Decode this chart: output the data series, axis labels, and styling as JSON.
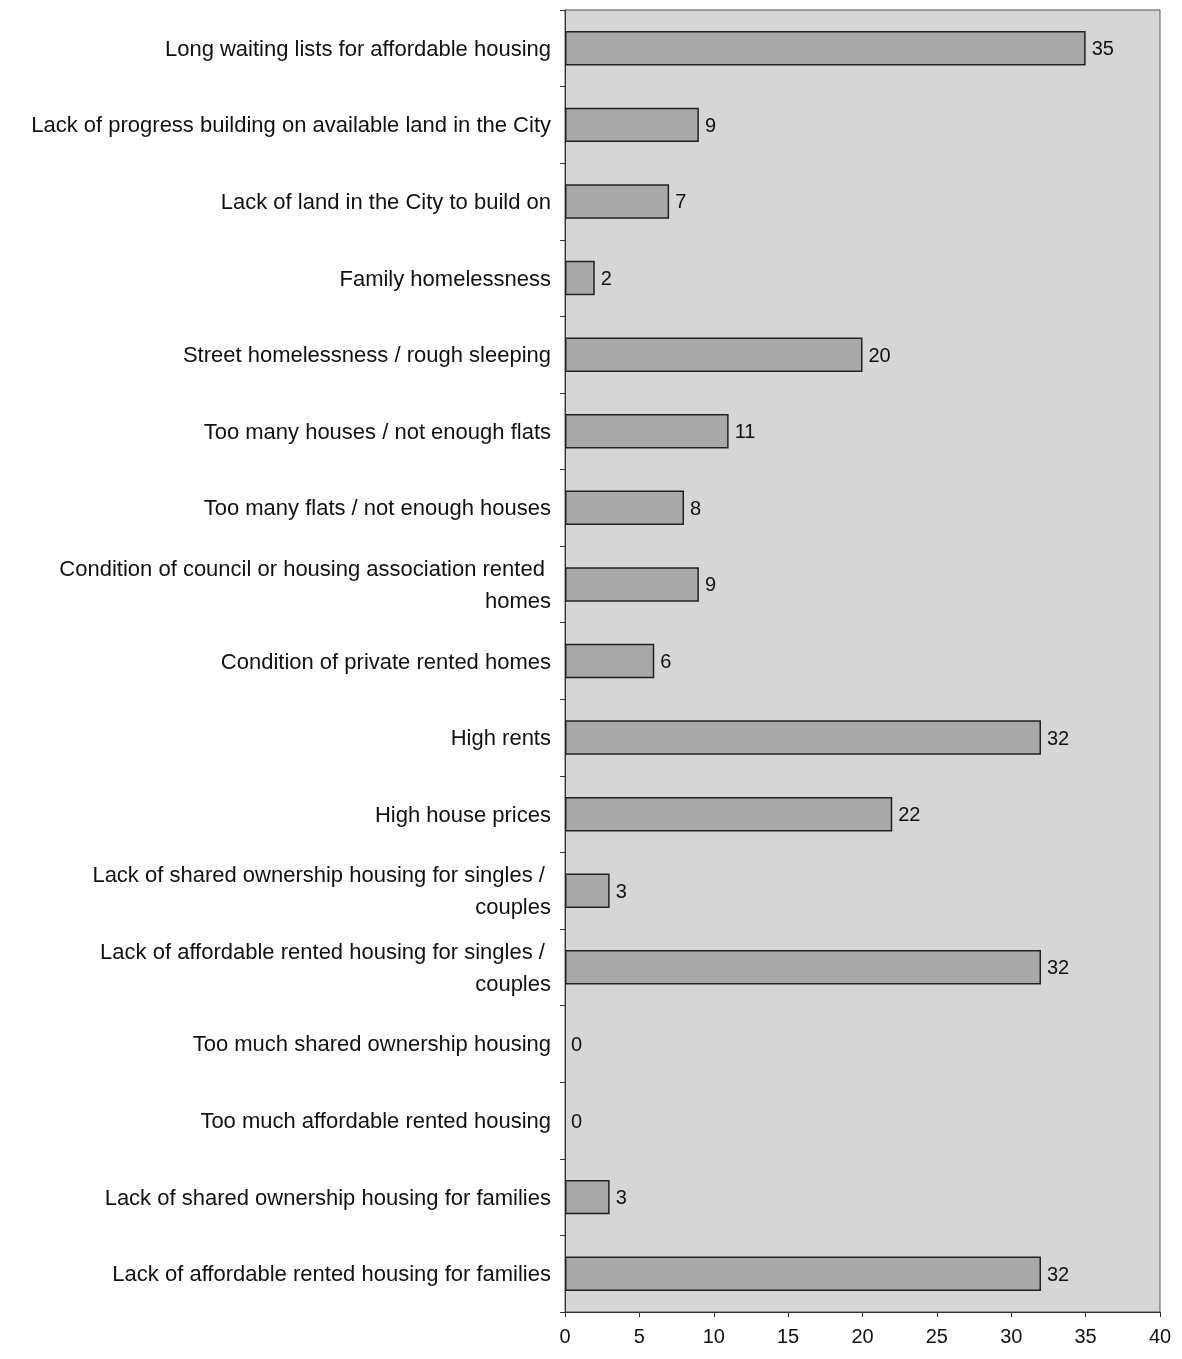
{
  "chart_data": {
    "type": "bar",
    "orientation": "horizontal",
    "categories": [
      "Long waiting lists for affordable housing",
      "Lack of progress building on available land in the City",
      "Lack of land in the City to build on",
      "Family homelessness",
      "Street homelessness / rough sleeping",
      "Too many houses / not enough flats",
      "Too many flats / not enough houses",
      "Condition of council or housing association rented homes",
      "Condition of private rented homes",
      "High rents",
      "High house prices",
      "Lack of shared ownership housing for singles / couples",
      "Lack of affordable rented housing for singles / couples",
      "Too much shared ownership housing",
      "Too much affordable rented housing",
      "Lack of shared ownership housing for families",
      "Lack of affordable rented housing for families"
    ],
    "values": [
      35,
      9,
      7,
      2,
      20,
      11,
      8,
      9,
      6,
      32,
      22,
      3,
      32,
      0,
      0,
      3,
      32
    ],
    "color": "#a9a9a9",
    "xlim": [
      0,
      40
    ],
    "xticks": [
      0,
      5,
      10,
      15,
      20,
      25,
      30,
      35,
      40
    ],
    "data_labels": true,
    "grid": false
  }
}
